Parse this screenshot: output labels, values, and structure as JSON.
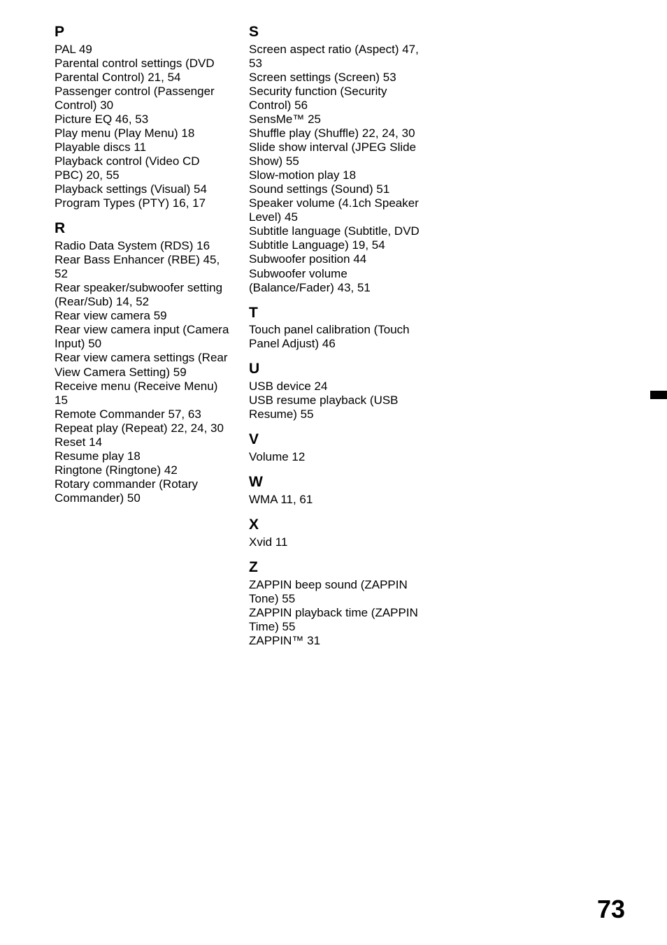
{
  "page_number": "73",
  "text_color": "#000000",
  "background_color": "#ffffff",
  "columns": [
    {
      "sections": [
        {
          "letter": "P",
          "entries": [
            "PAL 49",
            "Parental control settings (DVD Parental Control) 21, 54",
            "Passenger control (Passenger Control) 30",
            "Picture EQ 46, 53",
            "Play menu (Play Menu) 18",
            "Playable discs 11",
            "Playback control (Video CD PBC) 20, 55",
            "Playback settings (Visual) 54",
            "Program Types (PTY) 16, 17"
          ]
        },
        {
          "letter": "R",
          "entries": [
            "Radio Data System (RDS) 16",
            "Rear Bass Enhancer (RBE) 45, 52",
            "Rear speaker/subwoofer setting (Rear/Sub) 14, 52",
            "Rear view camera 59",
            "Rear view camera input (Camera Input) 50",
            "Rear view camera settings (Rear View Camera Setting) 59",
            "Receive menu (Receive Menu) 15",
            "Remote Commander 57, 63",
            "Repeat play (Repeat) 22, 24, 30",
            "Reset 14",
            "Resume play 18",
            "Ringtone (Ringtone) 42",
            "Rotary commander (Rotary Commander) 50"
          ]
        }
      ]
    },
    {
      "sections": [
        {
          "letter": "S",
          "entries": [
            "Screen aspect ratio (Aspect) 47, 53",
            "Screen settings (Screen) 53",
            "Security function (Security Control) 56",
            "SensMe™ 25",
            "Shuffle play (Shuffle) 22, 24, 30",
            "Slide show interval (JPEG Slide Show) 55",
            "Slow-motion play 18",
            "Sound settings (Sound) 51",
            "Speaker volume (4.1ch Speaker Level) 45",
            "Subtitle language (Subtitle, DVD Subtitle Language) 19, 54",
            "Subwoofer position 44",
            "Subwoofer volume (Balance/Fader) 43, 51"
          ]
        },
        {
          "letter": "T",
          "entries": [
            "Touch panel calibration (Touch Panel Adjust) 46"
          ]
        },
        {
          "letter": "U",
          "entries": [
            "USB device 24",
            "USB resume playback (USB Resume) 55"
          ]
        },
        {
          "letter": "V",
          "entries": [
            "Volume 12"
          ]
        },
        {
          "letter": "W",
          "entries": [
            "WMA 11, 61"
          ]
        },
        {
          "letter": "X",
          "entries": [
            "Xvid 11"
          ]
        },
        {
          "letter": "Z",
          "entries": [
            "ZAPPIN beep sound (ZAPPIN Tone) 55",
            "ZAPPIN playback time (ZAPPIN Time) 55",
            "ZAPPIN™ 31"
          ]
        }
      ]
    }
  ]
}
